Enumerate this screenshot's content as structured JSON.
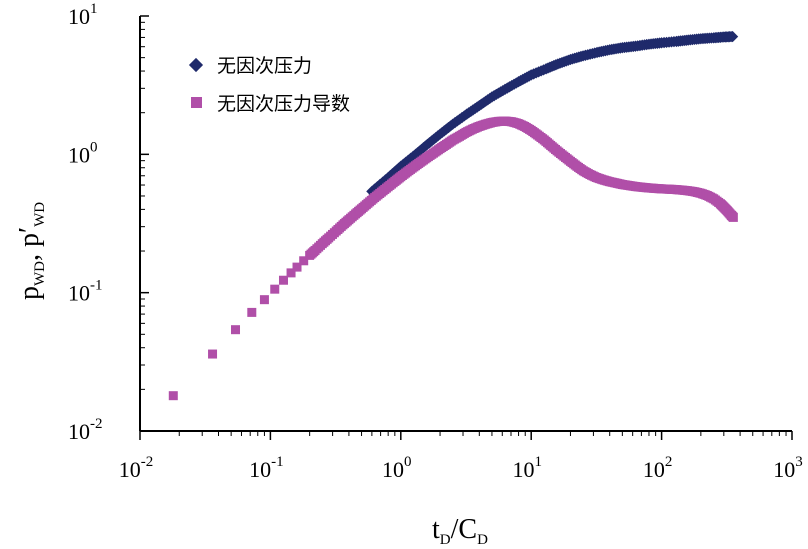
{
  "chart_data": {
    "type": "scatter",
    "xscale": "log",
    "yscale": "log",
    "xlim": [
      0.01,
      1000
    ],
    "ylim": [
      0.01,
      10
    ],
    "grid": false,
    "legend_position": "top-left",
    "xlabel": {
      "main": "t",
      "sub1": "D",
      "slash": "/",
      "main2": "C",
      "sub2": "D"
    },
    "ylabel": {
      "p": "p",
      "sub1": "WD",
      "comma": ", p",
      "prime": "′",
      "sub2": "WD"
    },
    "xticks": [
      {
        "base": "10",
        "exp": "-2"
      },
      {
        "base": "10",
        "exp": "-1"
      },
      {
        "base": "10",
        "exp": "0"
      },
      {
        "base": "10",
        "exp": "1"
      },
      {
        "base": "10",
        "exp": "2"
      },
      {
        "base": "10",
        "exp": "3"
      }
    ],
    "yticks": [
      {
        "base": "10",
        "exp": "-2"
      },
      {
        "base": "10",
        "exp": "-1"
      },
      {
        "base": "10",
        "exp": "0"
      },
      {
        "base": "10",
        "exp": "1"
      }
    ],
    "series": [
      {
        "name": "无因次压力",
        "color": "#1f2a6b",
        "marker": "diamond",
        "x": [
          0.6,
          0.8,
          1.0,
          1.3,
          1.6,
          2.0,
          2.5,
          3.2,
          4.0,
          5.0,
          6.3,
          8.0,
          10,
          13,
          16,
          20,
          25,
          32,
          40,
          50,
          63,
          80,
          100,
          130,
          160,
          200,
          250,
          300,
          350
        ],
        "y": [
          0.54,
          0.68,
          0.82,
          1.0,
          1.18,
          1.4,
          1.65,
          1.95,
          2.25,
          2.6,
          2.95,
          3.35,
          3.75,
          4.15,
          4.5,
          4.85,
          5.15,
          5.45,
          5.7,
          5.9,
          6.05,
          6.25,
          6.4,
          6.55,
          6.7,
          6.85,
          6.95,
          7.05,
          7.1
        ]
      },
      {
        "name": "无因次压力导数",
        "color": "#b04fa8",
        "marker": "square",
        "x": [
          0.018,
          0.036,
          0.054,
          0.072,
          0.09,
          0.108,
          0.126,
          0.144,
          0.16,
          0.18,
          0.2,
          0.22,
          0.25,
          0.28,
          0.32,
          0.36,
          0.4,
          0.45,
          0.5,
          0.56,
          0.63,
          0.71,
          0.8,
          0.9,
          1.0,
          1.12,
          1.26,
          1.41,
          1.58,
          1.78,
          2.0,
          2.24,
          2.51,
          2.82,
          3.16,
          3.55,
          3.98,
          4.47,
          5.01,
          5.62,
          6.31,
          7.08,
          7.94,
          8.91,
          10.0,
          11.2,
          12.6,
          14.1,
          15.8,
          17.8,
          20.0,
          22.4,
          25.1,
          28.2,
          31.6,
          35.5,
          39.8,
          44.7,
          50.1,
          56.2,
          63.1,
          70.8,
          79.4,
          89.1,
          100,
          112,
          126,
          141,
          158,
          178,
          200,
          224,
          251,
          282,
          300,
          320,
          340,
          355
        ],
        "y": [
          0.018,
          0.036,
          0.054,
          0.072,
          0.089,
          0.106,
          0.123,
          0.139,
          0.153,
          0.17,
          0.186,
          0.202,
          0.226,
          0.249,
          0.279,
          0.309,
          0.337,
          0.371,
          0.404,
          0.443,
          0.487,
          0.533,
          0.583,
          0.637,
          0.689,
          0.747,
          0.811,
          0.876,
          0.945,
          1.02,
          1.1,
          1.18,
          1.27,
          1.35,
          1.44,
          1.52,
          1.59,
          1.65,
          1.7,
          1.73,
          1.74,
          1.72,
          1.67,
          1.59,
          1.49,
          1.38,
          1.27,
          1.16,
          1.06,
          0.97,
          0.89,
          0.82,
          0.76,
          0.715,
          0.68,
          0.655,
          0.635,
          0.62,
          0.605,
          0.595,
          0.585,
          0.578,
          0.572,
          0.567,
          0.563,
          0.56,
          0.557,
          0.552,
          0.546,
          0.537,
          0.523,
          0.504,
          0.477,
          0.44,
          0.415,
          0.39,
          0.365,
          0.35
        ]
      }
    ]
  }
}
